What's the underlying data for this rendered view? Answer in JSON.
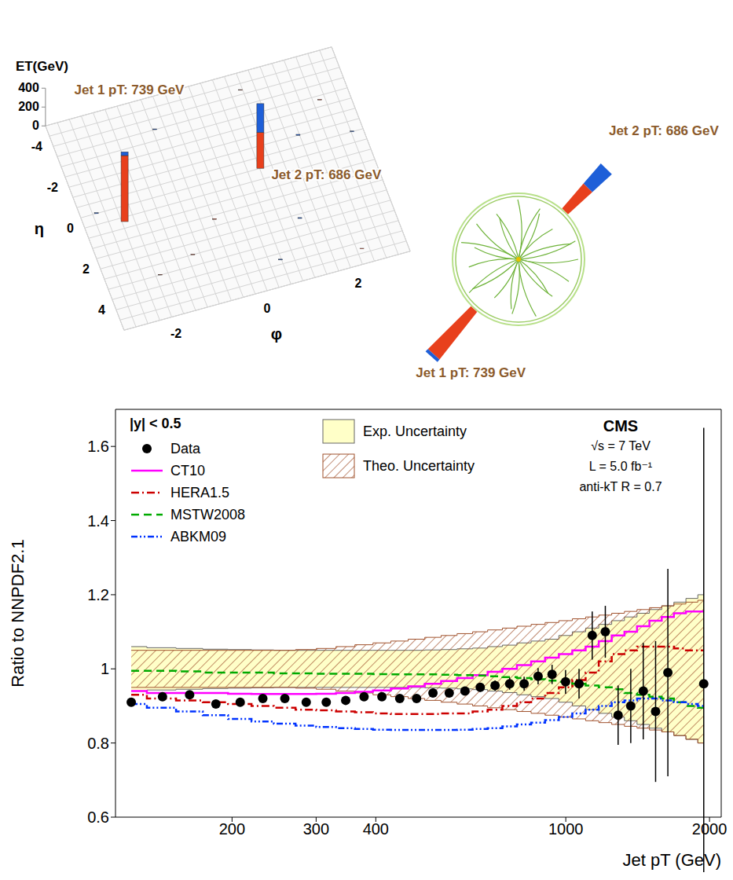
{
  "event_display": {
    "z_label": "ET(GeV)",
    "z_lim": [
      0,
      400
    ],
    "z_ticks": [
      0,
      200,
      400
    ],
    "eta_label": "η",
    "eta_lim": [
      -5,
      5
    ],
    "eta_ticks": [
      -4,
      -2,
      0,
      2,
      4
    ],
    "phi_label": "φ",
    "phi_lim": [
      -3.14,
      3.14
    ],
    "phi_ticks": [
      -2,
      0,
      2
    ],
    "jets": [
      {
        "label": "Jet 1 pT: 739 GeV",
        "eta": 0.2,
        "phi": -2.3,
        "et": [
          700,
          39
        ],
        "colors": [
          "#e8401c",
          "#1e5fd8"
        ]
      },
      {
        "label": "Jet 2 pT: 686 GeV",
        "eta": -0.5,
        "phi": 0.8,
        "et": [
          380,
          306
        ],
        "colors": [
          "#e8401c",
          "#1e5fd8"
        ]
      }
    ],
    "cells": [
      {
        "eta": -3.5,
        "phi": -1.0,
        "et": 8,
        "color": "#1e5fd8"
      },
      {
        "eta": -2.8,
        "phi": 2.5,
        "et": 6,
        "color": "#e8401c"
      },
      {
        "eta": -1.5,
        "phi": 1.8,
        "et": 10,
        "color": "#1e5fd8"
      },
      {
        "eta": 1.2,
        "phi": -0.5,
        "et": 7,
        "color": "#e8401c"
      },
      {
        "eta": 2.2,
        "phi": 1.2,
        "et": 9,
        "color": "#1e5fd8"
      },
      {
        "eta": 3.0,
        "phi": -2.0,
        "et": 6,
        "color": "#e8401c"
      },
      {
        "eta": 3.8,
        "phi": 0.5,
        "et": 8,
        "color": "#1e5fd8"
      },
      {
        "eta": 4.3,
        "phi": 2.2,
        "et": 5,
        "color": "#e8401c"
      },
      {
        "eta": -4.2,
        "phi": 1.0,
        "et": 6,
        "color": "#e8401c"
      },
      {
        "eta": -1.0,
        "phi": 2.9,
        "et": 7,
        "color": "#1e5fd8"
      },
      {
        "eta": -0.5,
        "phi": -2.8,
        "et": 9,
        "color": "#1e5fd8"
      },
      {
        "eta": 2.5,
        "phi": -1.2,
        "et": 5,
        "color": "#e8401c"
      }
    ]
  },
  "chart_data": {
    "type": "line",
    "xlabel": "Jet pT (GeV)",
    "ylabel": "Ratio to NNPDF2.1",
    "log": "x",
    "legend": "top-left",
    "xlim": [
      114,
      2116
    ],
    "xticks": [
      200,
      300,
      400,
      1000,
      2000
    ],
    "ylim": [
      0.6,
      1.7
    ],
    "yticks": [
      0.6,
      0.8,
      1,
      1.2,
      1.4,
      1.6
    ],
    "annotations": [
      "|y| < 0.5",
      "CMS",
      "√s = 7 TeV",
      "L = 5.0 fb⁻¹",
      "anti-kT R = 0.7"
    ],
    "x": [
      123,
      143,
      163,
      185,
      208,
      232,
      258,
      286,
      315,
      346,
      378,
      412,
      449,
      487,
      527,
      570,
      615,
      662,
      711,
      763,
      818,
      875,
      936,
      999,
      1066,
      1136,
      1210,
      1287,
      1368,
      1453,
      1542,
      1636,
      1734,
      1837,
      1945
    ],
    "series": [
      {
        "name": "Data",
        "type": "scatter",
        "color": "#000000",
        "marker": "circle",
        "values": [
          0.91,
          0.925,
          0.93,
          0.905,
          0.91,
          0.92,
          0.92,
          0.91,
          0.91,
          0.915,
          0.925,
          0.925,
          0.92,
          0.92,
          0.935,
          0.935,
          0.94,
          0.95,
          0.955,
          0.96,
          0.96,
          0.98,
          0.985,
          0.965,
          0.96,
          1.09,
          1.1,
          0.875,
          0.9,
          0.94,
          0.885,
          0.99,
          null,
          null,
          0.96
        ],
        "error": [
          0.005,
          0.005,
          0.005,
          0.005,
          0.005,
          0.005,
          0.005,
          0.005,
          0.005,
          0.005,
          0.005,
          0.006,
          0.006,
          0.007,
          0.008,
          0.009,
          0.01,
          0.012,
          0.014,
          0.016,
          0.019,
          0.022,
          0.026,
          0.032,
          0.04,
          0.065,
          0.07,
          0.08,
          0.1,
          0.13,
          0.19,
          0.28,
          null,
          null,
          0.69
        ]
      },
      {
        "name": "CT10",
        "type": "line",
        "color": "#ff00ff",
        "line_style": "solid",
        "values": [
          0.94,
          0.935,
          0.935,
          0.935,
          0.933,
          0.932,
          0.932,
          0.932,
          0.933,
          0.935,
          0.938,
          0.942,
          0.947,
          0.953,
          0.96,
          0.967,
          0.975,
          0.983,
          0.992,
          1.0,
          1.01,
          1.02,
          1.03,
          1.04,
          1.05,
          1.06,
          1.075,
          1.09,
          1.1,
          1.115,
          1.13,
          1.14,
          1.15,
          1.155,
          1.155
        ]
      },
      {
        "name": "HERA1.5",
        "type": "line",
        "color": "#cc0000",
        "line_style": "dashdot",
        "values": [
          0.93,
          0.92,
          0.915,
          0.91,
          0.905,
          0.9,
          0.895,
          0.89,
          0.888,
          0.885,
          0.883,
          0.88,
          0.878,
          0.878,
          0.878,
          0.88,
          0.88,
          0.885,
          0.89,
          0.9,
          0.91,
          0.92,
          0.935,
          0.95,
          0.97,
          0.99,
          1.02,
          1.04,
          1.05,
          1.06,
          1.06,
          1.06,
          1.055,
          1.05,
          1.05
        ]
      },
      {
        "name": "MSTW2008",
        "type": "line",
        "color": "#00aa00",
        "line_style": "dashed",
        "values": [
          0.995,
          0.995,
          0.993,
          0.99,
          0.99,
          0.99,
          0.988,
          0.988,
          0.987,
          0.987,
          0.987,
          0.986,
          0.985,
          0.985,
          0.985,
          0.984,
          0.983,
          0.982,
          0.98,
          0.978,
          0.975,
          0.972,
          0.968,
          0.965,
          0.96,
          0.955,
          0.95,
          0.945,
          0.935,
          0.93,
          0.925,
          0.92,
          0.91,
          0.9,
          0.895
        ]
      },
      {
        "name": "ABKM09",
        "type": "line",
        "color": "#0033ff",
        "line_style": "dashdotdot",
        "values": [
          0.905,
          0.895,
          0.885,
          0.875,
          0.865,
          0.858,
          0.852,
          0.847,
          0.843,
          0.84,
          0.838,
          0.836,
          0.835,
          0.835,
          0.835,
          0.835,
          0.836,
          0.838,
          0.84,
          0.845,
          0.85,
          0.855,
          0.862,
          0.87,
          0.88,
          0.89,
          0.9,
          0.91,
          0.915,
          0.92,
          0.92,
          0.915,
          0.91,
          0.905,
          0.9
        ]
      }
    ],
    "bands": [
      {
        "name": "Exp. Uncertainty",
        "color": "#ffffc8",
        "low": [
          0.94,
          0.943,
          0.945,
          0.947,
          0.948,
          0.949,
          0.95,
          0.95,
          0.95,
          0.95,
          0.95,
          0.95,
          0.95,
          0.95,
          0.949,
          0.948,
          0.946,
          0.944,
          0.94,
          0.936,
          0.93,
          0.925,
          0.92,
          0.91,
          0.9,
          0.89,
          0.88,
          0.87,
          0.86,
          0.85,
          0.84,
          0.83,
          0.82,
          0.81,
          0.8
        ],
        "high": [
          1.06,
          1.057,
          1.055,
          1.053,
          1.052,
          1.051,
          1.05,
          1.05,
          1.05,
          1.05,
          1.05,
          1.05,
          1.05,
          1.05,
          1.051,
          1.052,
          1.054,
          1.056,
          1.06,
          1.064,
          1.07,
          1.075,
          1.08,
          1.09,
          1.1,
          1.11,
          1.12,
          1.13,
          1.14,
          1.15,
          1.16,
          1.17,
          1.18,
          1.19,
          1.2
        ]
      },
      {
        "name": "Theo. Uncertainty",
        "color": "#a0522d",
        "low": [
          0.95,
          0.95,
          0.95,
          0.95,
          0.95,
          0.95,
          0.95,
          0.948,
          0.945,
          0.94,
          0.935,
          0.93,
          0.925,
          0.92,
          0.915,
          0.91,
          0.905,
          0.9,
          0.895,
          0.89,
          0.885,
          0.88,
          0.875,
          0.87,
          0.865,
          0.86,
          0.855,
          0.85,
          0.845,
          0.84,
          0.835,
          0.83,
          0.82,
          0.81,
          0.8
        ],
        "high": [
          1.05,
          1.05,
          1.05,
          1.05,
          1.05,
          1.05,
          1.05,
          1.052,
          1.055,
          1.06,
          1.065,
          1.07,
          1.075,
          1.08,
          1.085,
          1.09,
          1.095,
          1.1,
          1.105,
          1.11,
          1.115,
          1.12,
          1.125,
          1.13,
          1.135,
          1.14,
          1.145,
          1.15,
          1.155,
          1.16,
          1.165,
          1.17,
          1.175,
          1.18,
          1.185
        ]
      }
    ]
  }
}
